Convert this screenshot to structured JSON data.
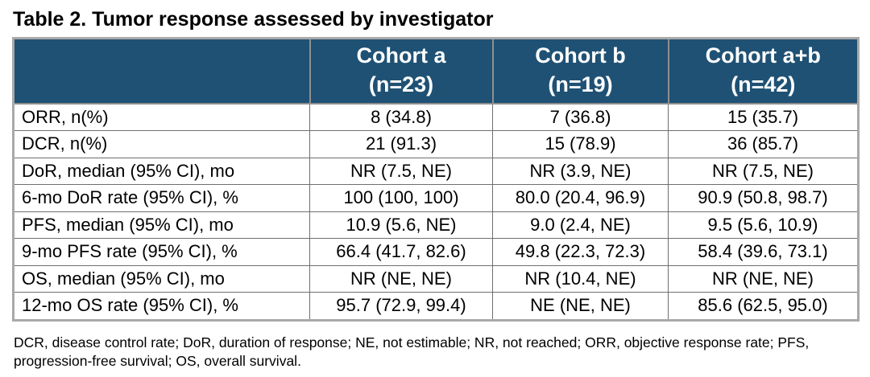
{
  "title": "Table 2. Tumor response assessed by investigator",
  "table": {
    "header": {
      "stub": "",
      "columns": [
        {
          "line1": "Cohort a",
          "line2": "(n=23)"
        },
        {
          "line1": "Cohort b",
          "line2": "(n=19)"
        },
        {
          "line1": "Cohort a+b",
          "line2": "(n=42)"
        }
      ]
    },
    "rows": [
      {
        "label": "ORR, n(%)",
        "values": [
          "8 (34.8)",
          "7 (36.8)",
          "15 (35.7)"
        ]
      },
      {
        "label": "DCR, n(%)",
        "values": [
          "21 (91.3)",
          "15 (78.9)",
          "36 (85.7)"
        ]
      },
      {
        "label": "DoR, median (95% CI), mo",
        "values": [
          "NR (7.5, NE)",
          "NR (3.9, NE)",
          "NR (7.5, NE)"
        ]
      },
      {
        "label": "6-mo DoR rate (95% CI), %",
        "values": [
          "100 (100, 100)",
          "80.0 (20.4, 96.9)",
          "90.9 (50.8, 98.7)"
        ]
      },
      {
        "label": "PFS, median (95% CI), mo",
        "values": [
          "10.9 (5.6, NE)",
          "9.0 (2.4, NE)",
          "9.5 (5.6, 10.9)"
        ]
      },
      {
        "label": "9-mo PFS rate (95% CI), %",
        "values": [
          "66.4 (41.7, 82.6)",
          "49.8 (22.3, 72.3)",
          "58.4 (39.6, 73.1)"
        ]
      },
      {
        "label": "OS, median (95% CI), mo",
        "values": [
          "NR (NE, NE)",
          "NR (10.4, NE)",
          "NR (NE, NE)"
        ]
      },
      {
        "label": "12-mo OS rate (95% CI), %",
        "values": [
          "95.7 (72.9, 99.4)",
          "NE (NE, NE)",
          "85.6 (62.5, 95.0)"
        ]
      }
    ]
  },
  "footnote": "DCR, disease control rate; DoR, duration of response; NE, not estimable; NR, not reached; ORR, objective response rate; PFS, progression-free survival; OS, overall survival.",
  "colors": {
    "header_bg": "#1f5174",
    "header_text": "#ffffff",
    "body_text": "#000000",
    "cell_border": "#6f6f6f",
    "outer_border": "#a9a9a9"
  }
}
